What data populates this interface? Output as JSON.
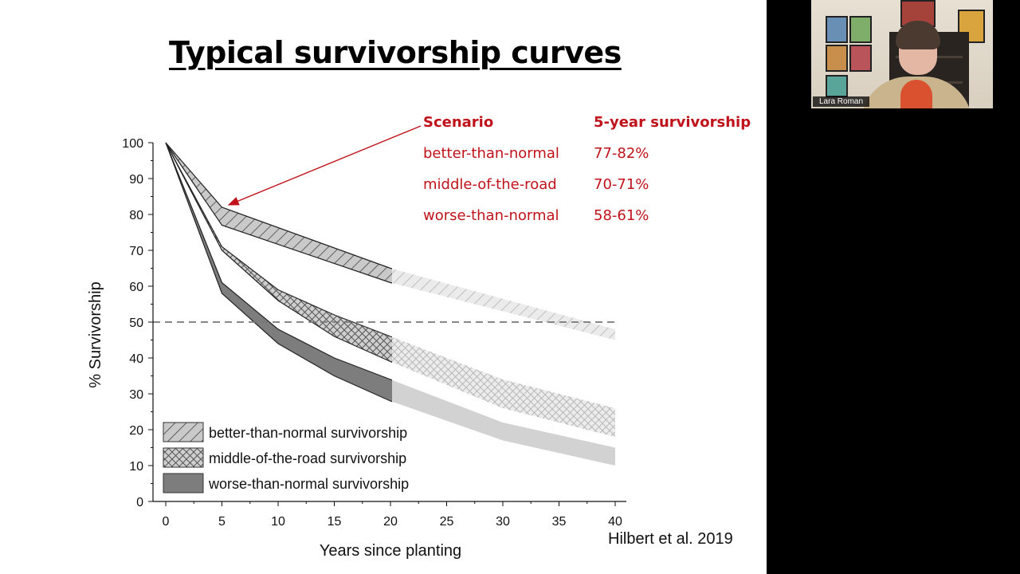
{
  "slide": {
    "title": "Typical survivorship curves",
    "citation": "Hilbert et al. 2019"
  },
  "scenario_table": {
    "header_scenario": "Scenario",
    "header_survivorship": "5-year survivorship",
    "rows": [
      {
        "scenario": "better-than-normal",
        "value": "77-82%"
      },
      {
        "scenario": "middle-of-the-road",
        "value": "70-71%"
      },
      {
        "scenario": "worse-than-normal",
        "value": "58-61%"
      }
    ],
    "accent_color": "#c0121a"
  },
  "chart_data": {
    "type": "area",
    "xlabel": "Years since planting",
    "ylabel": "% Survivorship",
    "xlim": [
      0,
      40
    ],
    "ylim": [
      0,
      100
    ],
    "x_ticks": [
      0,
      5,
      10,
      15,
      20,
      25,
      30,
      35,
      40
    ],
    "y_ticks": [
      0,
      10,
      20,
      30,
      40,
      50,
      60,
      70,
      80,
      90,
      100
    ],
    "reference_line": {
      "y": 50,
      "style": "dashed"
    },
    "observed_until": 20,
    "legend_position": "bottom-left",
    "series": [
      {
        "name": "better-than-normal survivorship",
        "pattern": "diagonal-hatch",
        "x": [
          0,
          5,
          20,
          40
        ],
        "upper": [
          100,
          82,
          65,
          48
        ],
        "lower": [
          100,
          77,
          61,
          45
        ]
      },
      {
        "name": "middle-of-the-road survivorship",
        "pattern": "cross-hatch",
        "x": [
          0,
          5,
          10,
          15,
          20,
          30,
          40
        ],
        "upper": [
          100,
          71,
          59,
          52,
          46,
          34,
          26
        ],
        "lower": [
          100,
          70,
          56,
          46,
          39,
          26,
          18
        ]
      },
      {
        "name": "worse-than-normal survivorship",
        "pattern": "solid-gray",
        "x": [
          0,
          5,
          10,
          15,
          20,
          30,
          40
        ],
        "upper": [
          100,
          61,
          48,
          40,
          34,
          22,
          15
        ],
        "lower": [
          100,
          58,
          44,
          35,
          28,
          17,
          10
        ]
      }
    ]
  },
  "video": {
    "participant_name": "Lara Roman"
  }
}
